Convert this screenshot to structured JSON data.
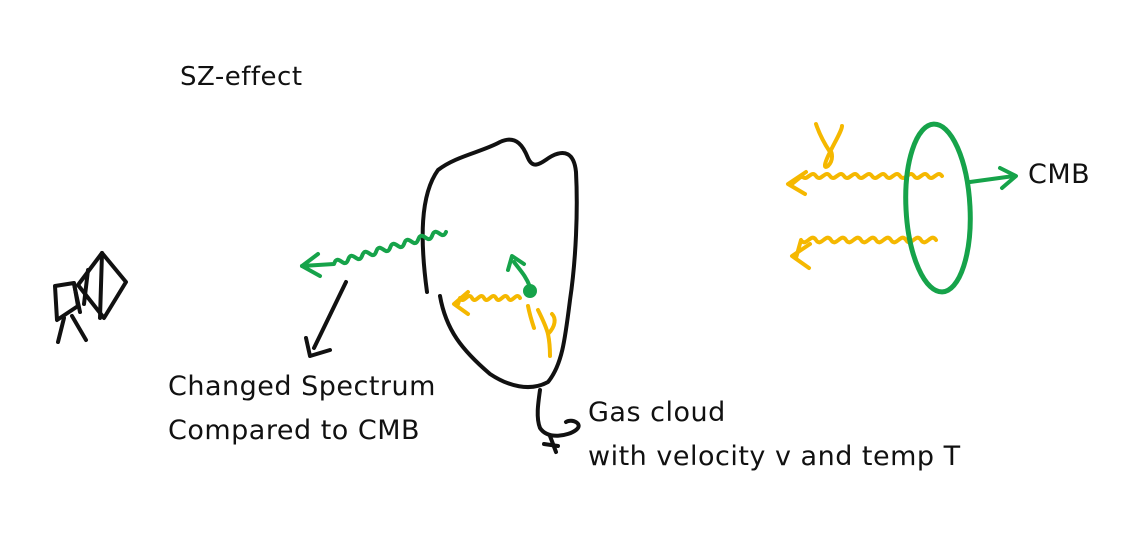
{
  "title": "SZ-effect",
  "labels": {
    "cmb": "CMB",
    "changed_spectrum_line1": "Changed Spectrum",
    "changed_spectrum_line2": "Compared to CMB",
    "gas_cloud_line1": "Gas cloud",
    "gas_cloud_line2": "with velocity v and temp T"
  },
  "photon_symbol": "γ",
  "colors": {
    "ink": "#111111",
    "photon": "#f5b800",
    "scattered": "#16a34a"
  },
  "icons": [
    "camera-icon"
  ]
}
